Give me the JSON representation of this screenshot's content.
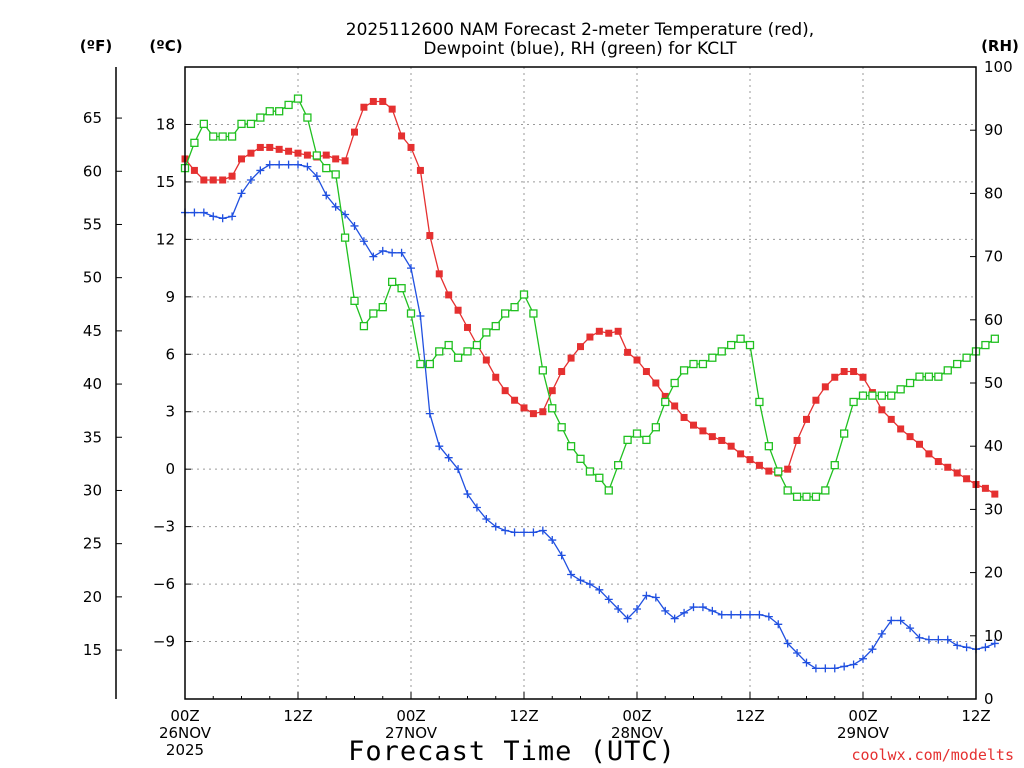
{
  "chart_data": {
    "type": "line",
    "title_line1": "2025112600 NAM Forecast 2-meter Temperature (red),",
    "title_line2": "Dewpoint (blue), RH (green) for KCLT",
    "xlabel": "Forecast Time (UTC)",
    "credit": "coolwx.com/modelts",
    "units": {
      "fahrenheit": "(ºF)",
      "celsius": "(ºC)",
      "rh": "(RH)"
    },
    "xlim_hours": [
      0,
      84
    ],
    "x_step_hours": 1,
    "x_ticks": [
      {
        "hour": 0,
        "line1": "00Z",
        "line2": "26NOV",
        "line3": "2025"
      },
      {
        "hour": 12,
        "line1": "12Z",
        "line2": "",
        "line3": ""
      },
      {
        "hour": 24,
        "line1": "00Z",
        "line2": "27NOV",
        "line3": ""
      },
      {
        "hour": 36,
        "line1": "12Z",
        "line2": "",
        "line3": ""
      },
      {
        "hour": 48,
        "line1": "00Z",
        "line2": "28NOV",
        "line3": ""
      },
      {
        "hour": 60,
        "line1": "12Z",
        "line2": "",
        "line3": ""
      },
      {
        "hour": 72,
        "line1": "00Z",
        "line2": "29NOV",
        "line3": ""
      },
      {
        "hour": 84,
        "line1": "12Z",
        "line2": "",
        "line3": ""
      }
    ],
    "celsius_axis": {
      "ylim": [
        -12,
        21
      ],
      "ticks": [
        "18",
        "15",
        "12",
        "9",
        "6",
        "3",
        "0",
        "−3",
        "−6",
        "−9"
      ]
    },
    "fahrenheit_axis": {
      "ticks": [
        "65",
        "60",
        "55",
        "50",
        "45",
        "40",
        "35",
        "30",
        "25",
        "20",
        "15"
      ]
    },
    "rh_axis": {
      "ylim": [
        0,
        100
      ],
      "ticks": [
        "100",
        "90",
        "80",
        "70",
        "60",
        "50",
        "40",
        "30",
        "20",
        "10",
        "0"
      ]
    },
    "series": [
      {
        "name": "2-meter Temperature (°C)",
        "color": "#e53030",
        "marker": "filled-square",
        "values": [
          16.2,
          15.6,
          15.1,
          15.1,
          15.1,
          15.3,
          16.2,
          16.5,
          16.8,
          16.8,
          16.7,
          16.6,
          16.5,
          16.4,
          16.3,
          16.4,
          16.2,
          16.1,
          17.6,
          18.9,
          19.2,
          19.2,
          18.8,
          17.4,
          16.8,
          15.6,
          12.2,
          10.2,
          9.1,
          8.3,
          7.4,
          6.5,
          5.7,
          4.8,
          4.1,
          3.6,
          3.2,
          2.9,
          3.0,
          4.1,
          5.1,
          5.8,
          6.4,
          6.9,
          7.2,
          7.1,
          7.2,
          6.1,
          5.7,
          5.1,
          4.5,
          3.8,
          3.3,
          2.7,
          2.3,
          2.0,
          1.7,
          1.5,
          1.2,
          0.8,
          0.5,
          0.2,
          -0.1,
          -0.2,
          0.0,
          1.5,
          2.6,
          3.6,
          4.3,
          4.8,
          5.1,
          5.1,
          4.8,
          4.0,
          3.1,
          2.6,
          2.1,
          1.7,
          1.3,
          0.8,
          0.4,
          0.1,
          -0.2,
          -0.5,
          -0.8,
          -1.0,
          -1.3
        ]
      },
      {
        "name": "Dewpoint (°C)",
        "color": "#2050e0",
        "marker": "plus",
        "values": [
          13.4,
          13.4,
          13.4,
          13.2,
          13.1,
          13.2,
          14.4,
          15.1,
          15.6,
          15.9,
          15.9,
          15.9,
          15.9,
          15.8,
          15.3,
          14.3,
          13.7,
          13.3,
          12.7,
          11.9,
          11.1,
          11.4,
          11.3,
          11.3,
          10.5,
          8.0,
          2.9,
          1.2,
          0.6,
          0.0,
          -1.3,
          -2.0,
          -2.6,
          -3.0,
          -3.2,
          -3.3,
          -3.3,
          -3.3,
          -3.2,
          -3.7,
          -4.5,
          -5.5,
          -5.8,
          -6.0,
          -6.3,
          -6.8,
          -7.3,
          -7.8,
          -7.3,
          -6.6,
          -6.7,
          -7.4,
          -7.8,
          -7.5,
          -7.2,
          -7.2,
          -7.4,
          -7.6,
          -7.6,
          -7.6,
          -7.6,
          -7.6,
          -7.7,
          -8.1,
          -9.1,
          -9.6,
          -10.1,
          -10.4,
          -10.4,
          -10.4,
          -10.3,
          -10.2,
          -9.9,
          -9.4,
          -8.6,
          -7.9,
          -7.9,
          -8.3,
          -8.8,
          -8.9,
          -8.9,
          -8.9,
          -9.2,
          -9.3,
          -9.4,
          -9.3,
          -9.1
        ]
      },
      {
        "name": "RH (%)",
        "color": "#20c020",
        "marker": "open-square",
        "values": [
          84,
          88,
          91,
          89,
          89,
          89,
          91,
          91,
          92,
          93,
          93,
          94,
          95,
          92,
          86,
          84,
          83,
          73,
          63,
          59,
          61,
          62,
          66,
          65,
          61,
          53,
          53,
          55,
          56,
          54,
          55,
          56,
          58,
          59,
          61,
          62,
          64,
          61,
          52,
          46,
          43,
          40,
          38,
          36,
          35,
          33,
          37,
          41,
          42,
          41,
          43,
          47,
          50,
          52,
          53,
          53,
          54,
          55,
          56,
          57,
          56,
          47,
          40,
          36,
          33,
          32,
          32,
          32,
          33,
          37,
          42,
          47,
          48,
          48,
          48,
          48,
          49,
          50,
          51,
          51,
          51,
          52,
          53,
          54,
          55,
          56,
          57
        ]
      }
    ]
  }
}
